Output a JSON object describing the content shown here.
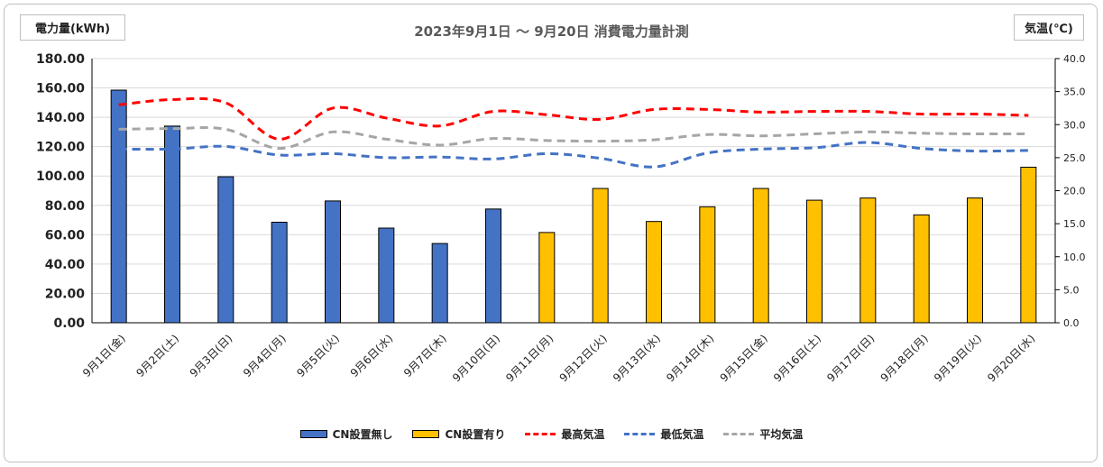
{
  "chart_title": "2023年9月1日 〜 9月20日 消費電力量計測",
  "left_unit_label": "電力量(kWh)",
  "right_unit_label": "気温(℃)",
  "colors": {
    "cn_without": "#4472c4",
    "cn_with": "#ffc000",
    "max_temp": "#ff0000",
    "min_temp": "#4472c4",
    "avg_temp": "#a6a6a6",
    "grid": "#d9d9d9"
  },
  "chart_data": {
    "type": "bar",
    "title": "2023年9月1日 〜 9月20日 消費電力量計測",
    "ylabel": "電力量(kWh)",
    "y2label": "気温(℃)",
    "ylim": [
      0,
      180
    ],
    "y2lim": [
      0,
      40
    ],
    "y_ticks": [
      "0.00",
      "20.00",
      "40.00",
      "60.00",
      "80.00",
      "100.00",
      "120.00",
      "140.00",
      "160.00",
      "180.00"
    ],
    "y2_ticks": [
      "0.0",
      "5.0",
      "10.0",
      "15.0",
      "20.0",
      "25.0",
      "30.0",
      "35.0",
      "40.0"
    ],
    "grid": true,
    "legend_position": "bottom",
    "categories": [
      "9月1日(金)",
      "9月2日(土)",
      "9月3日(日)",
      "9月4日(月)",
      "9月5日(火)",
      "9月6日(水)",
      "9月7日(木)",
      "9月10日(日)",
      "9月11日(月)",
      "9月12日(火)",
      "9月13日(水)",
      "9月14日(木)",
      "9月15日(金)",
      "9月16日(土)",
      "9月17日(日)",
      "9月18日(月)",
      "9月19日(火)",
      "9月20日(水)"
    ],
    "series": [
      {
        "name": "CN設置無し",
        "type": "bar",
        "axis": "left",
        "values": [
          158.5,
          134,
          99.5,
          68.5,
          83,
          64.5,
          54,
          77.5,
          null,
          null,
          null,
          null,
          null,
          null,
          null,
          null,
          null,
          null
        ]
      },
      {
        "name": "CN設置有り",
        "type": "bar",
        "axis": "left",
        "values": [
          null,
          null,
          null,
          null,
          null,
          null,
          null,
          null,
          61.5,
          91.5,
          69,
          79,
          91.5,
          83.5,
          85,
          73.5,
          85,
          106
        ]
      },
      {
        "name": "最高気温",
        "type": "line",
        "axis": "right",
        "values": [
          33.0,
          33.8,
          33.3,
          27.8,
          32.5,
          31.0,
          29.8,
          32.0,
          31.5,
          30.8,
          32.3,
          32.3,
          31.9,
          32.0,
          32.0,
          31.6,
          31.6,
          31.4
        ]
      },
      {
        "name": "最低気温",
        "type": "line",
        "axis": "right",
        "values": [
          26.3,
          26.3,
          26.7,
          25.4,
          25.6,
          25.0,
          25.1,
          24.8,
          25.6,
          24.9,
          23.6,
          25.7,
          26.3,
          26.5,
          27.3,
          26.4,
          26.0,
          26.1
        ]
      },
      {
        "name": "平均気温",
        "type": "line",
        "axis": "right",
        "values": [
          29.3,
          29.4,
          29.3,
          26.4,
          28.9,
          27.8,
          26.9,
          27.9,
          27.6,
          27.5,
          27.7,
          28.5,
          28.3,
          28.6,
          28.9,
          28.7,
          28.6,
          28.6
        ]
      }
    ]
  }
}
